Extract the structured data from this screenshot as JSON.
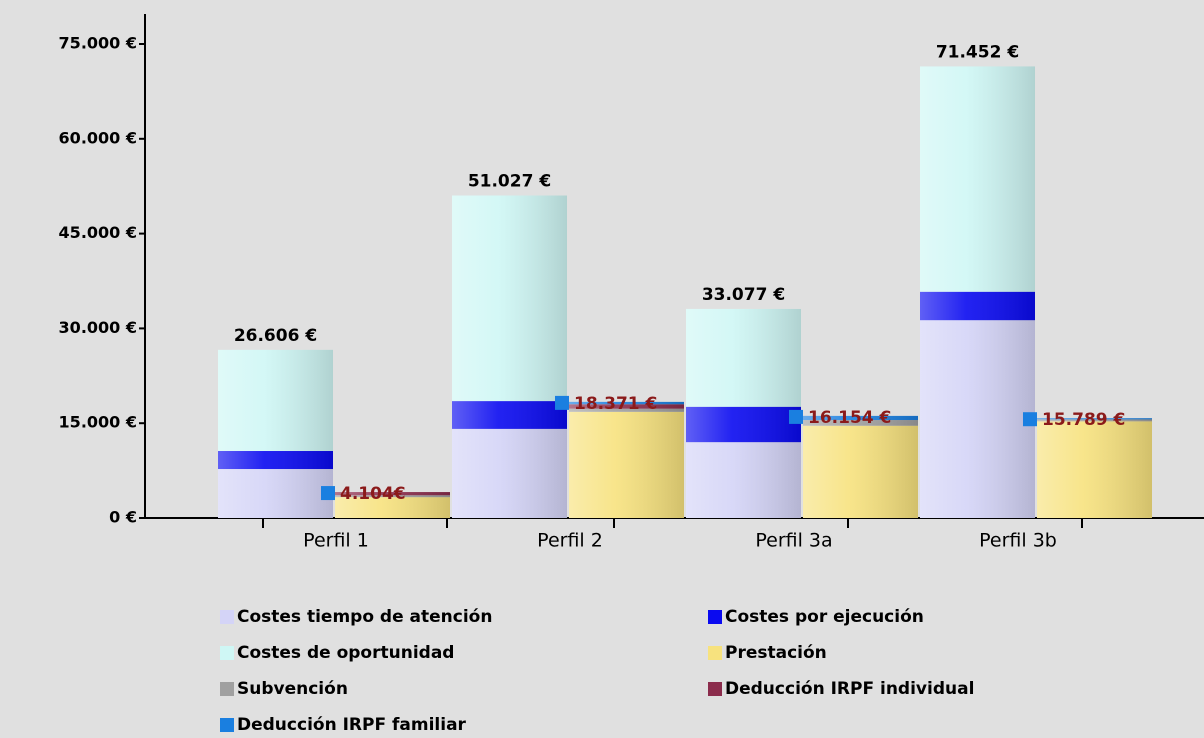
{
  "chart_data": {
    "type": "stacked_bar",
    "categories": [
      "Perfil 1",
      "Perfil 2",
      "Perfil 3a",
      "Perfil 3b"
    ],
    "ylim": [
      0,
      75000
    ],
    "yticks": [
      {
        "value": 0,
        "label": "0 €"
      },
      {
        "value": 15000,
        "label": "15.000 €"
      },
      {
        "value": 30000,
        "label": "30.000 €"
      },
      {
        "value": 45000,
        "label": "45.000 €"
      },
      {
        "value": 60000,
        "label": "60.000 €"
      },
      {
        "value": 75000,
        "label": "75.000 €"
      }
    ],
    "series": [
      {
        "name": "Costes tiempo de atención",
        "color": "#d4d4f7",
        "stack": "cost",
        "values": [
          7750,
          14100,
          12000,
          31300
        ]
      },
      {
        "name": "Costes por ejecución",
        "color": "#0a0af0",
        "stack": "cost",
        "values": [
          2850,
          4400,
          5600,
          4500
        ]
      },
      {
        "name": "Costes de oportunidad",
        "color": "#cff7f5",
        "stack": "cost",
        "values": [
          16006,
          32527,
          15477,
          35652
        ]
      },
      {
        "name": "Prestación",
        "color": "#f7e27e",
        "stack": "benefit",
        "values": [
          3300,
          16800,
          14600,
          15300
        ]
      },
      {
        "name": "Subvención",
        "color": "#a0a0a0",
        "stack": "benefit",
        "values": [
          300,
          500,
          900,
          300
        ]
      },
      {
        "name": "Deducción IRPF individual",
        "color": "#8b2c4c",
        "stack": "benefit",
        "values": [
          504,
          700,
          0,
          0
        ]
      },
      {
        "name": "Deducción IRPF familiar",
        "color": "#1a7fe0",
        "stack": "benefit",
        "values": [
          0,
          371,
          654,
          189
        ]
      }
    ],
    "totals": {
      "cost": {
        "values": [
          26606,
          51027,
          33077,
          71452
        ],
        "value_labels": [
          "26.606 €",
          "51.027 €",
          "33.077 €",
          "71.452 €"
        ]
      },
      "benefit": {
        "values": [
          4104,
          18371,
          16154,
          15789
        ],
        "value_labels": [
          "4.104€",
          "18.371 €",
          "16.154 €",
          "15.789 €"
        ]
      }
    }
  }
}
